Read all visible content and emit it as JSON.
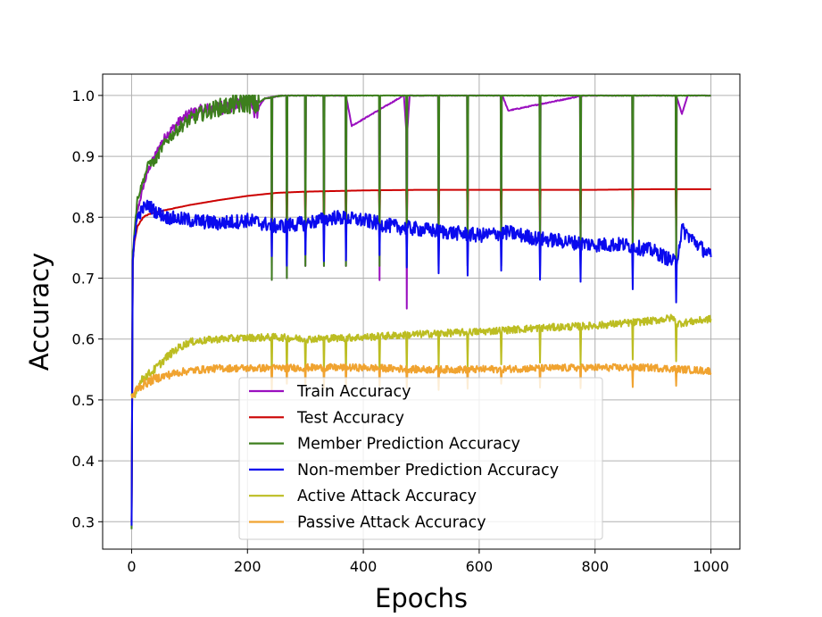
{
  "chart_data": {
    "type": "line",
    "xlabel": "Epochs",
    "ylabel": "Accuracy",
    "xlim": [
      -50,
      1050
    ],
    "ylim": [
      0.255,
      1.035
    ],
    "xticks": [
      0,
      200,
      400,
      600,
      800,
      1000
    ],
    "xtick_labels": [
      "0",
      "200",
      "400",
      "600",
      "800",
      "1000"
    ],
    "yticks": [
      0.3,
      0.4,
      0.5,
      0.6,
      0.7,
      0.8,
      0.9,
      1.0
    ],
    "ytick_labels": [
      "0.3",
      "0.4",
      "0.5",
      "0.6",
      "0.7",
      "0.8",
      "0.9",
      "1.0"
    ],
    "grid": true,
    "legend_position": "bottom-center",
    "dips": [
      242,
      268,
      300,
      332,
      370,
      428,
      475,
      530,
      580,
      638,
      705,
      775,
      865,
      940
    ],
    "series": [
      {
        "name": "Train Accuracy",
        "color": "#9a0fbf",
        "x": [
          0,
          2,
          5,
          10,
          20,
          30,
          40,
          50,
          60,
          80,
          100,
          120,
          150,
          180,
          200,
          215,
          230,
          260,
          300,
          370,
          380,
          470,
          475,
          480,
          600,
          640,
          650,
          780,
          940,
          950,
          960,
          1000
        ],
        "values": [
          0.3,
          0.72,
          0.77,
          0.81,
          0.85,
          0.88,
          0.9,
          0.92,
          0.935,
          0.955,
          0.97,
          0.975,
          0.98,
          0.985,
          0.99,
          0.975,
          0.995,
          1.0,
          1.0,
          1.0,
          0.95,
          1.0,
          0.93,
          1.0,
          1.0,
          1.0,
          0.975,
          1.0,
          1.0,
          0.97,
          1.0,
          1.0
        ]
      },
      {
        "name": "Test Accuracy",
        "color": "#cc0000",
        "x": [
          0,
          2,
          5,
          10,
          20,
          30,
          50,
          75,
          100,
          150,
          200,
          250,
          300,
          400,
          500,
          600,
          700,
          800,
          900,
          1000
        ],
        "values": [
          0.3,
          0.73,
          0.76,
          0.785,
          0.8,
          0.805,
          0.81,
          0.815,
          0.82,
          0.828,
          0.835,
          0.84,
          0.842,
          0.844,
          0.845,
          0.845,
          0.845,
          0.845,
          0.846,
          0.846
        ]
      },
      {
        "name": "Member Prediction Accuracy",
        "color": "#3d7f1d",
        "x": [
          0,
          2,
          5,
          10,
          20,
          30,
          40,
          50,
          60,
          80,
          100,
          120,
          150,
          180,
          200,
          215,
          230,
          260,
          1000
        ],
        "values": [
          0.29,
          0.74,
          0.78,
          0.83,
          0.86,
          0.89,
          0.89,
          0.91,
          0.925,
          0.945,
          0.96,
          0.97,
          0.98,
          0.985,
          0.99,
          0.985,
          0.995,
          1.0,
          1.0
        ]
      },
      {
        "name": "Non-member Prediction Accuracy",
        "color": "#0a0aee",
        "x": [
          0,
          2,
          5,
          10,
          20,
          30,
          40,
          60,
          100,
          150,
          200,
          250,
          300,
          350,
          400,
          450,
          500,
          550,
          600,
          650,
          700,
          750,
          800,
          850,
          900,
          940,
          950,
          1000
        ],
        "values": [
          0.29,
          0.72,
          0.77,
          0.8,
          0.815,
          0.82,
          0.81,
          0.8,
          0.795,
          0.79,
          0.795,
          0.785,
          0.79,
          0.8,
          0.795,
          0.785,
          0.78,
          0.775,
          0.77,
          0.775,
          0.765,
          0.76,
          0.755,
          0.755,
          0.745,
          0.725,
          0.78,
          0.735
        ]
      },
      {
        "name": "Active Attack Accuracy",
        "color": "#bcbd22",
        "x": [
          0,
          5,
          10,
          20,
          40,
          60,
          80,
          100,
          150,
          200,
          250,
          300,
          400,
          500,
          600,
          700,
          800,
          900,
          935,
          940,
          1000
        ],
        "values": [
          0.505,
          0.51,
          0.52,
          0.535,
          0.55,
          0.57,
          0.585,
          0.595,
          0.6,
          0.602,
          0.603,
          0.6,
          0.603,
          0.608,
          0.612,
          0.618,
          0.622,
          0.63,
          0.635,
          0.625,
          0.633
        ]
      },
      {
        "name": "Passive Attack Accuracy",
        "color": "#f0a330",
        "x": [
          0,
          5,
          10,
          20,
          40,
          60,
          80,
          100,
          150,
          200,
          300,
          400,
          500,
          600,
          700,
          800,
          900,
          990,
          1000
        ],
        "values": [
          0.505,
          0.51,
          0.52,
          0.525,
          0.535,
          0.54,
          0.545,
          0.548,
          0.552,
          0.552,
          0.553,
          0.553,
          0.55,
          0.55,
          0.552,
          0.553,
          0.553,
          0.548,
          0.548
        ]
      }
    ]
  }
}
